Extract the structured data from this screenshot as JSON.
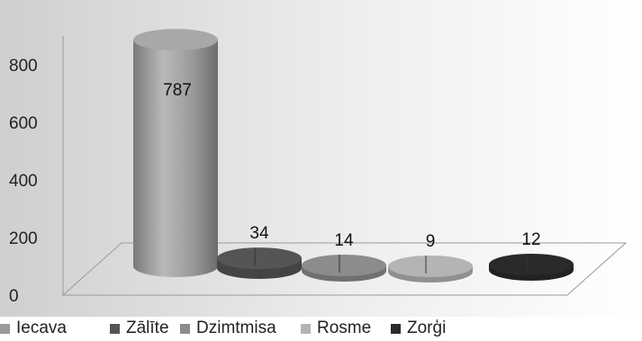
{
  "chart_data": {
    "type": "bar",
    "categories": [
      "Iecava",
      "Zālīte",
      "Dzimtmisa",
      "Rosme",
      "Zorģi"
    ],
    "values": [
      787,
      34,
      14,
      9,
      12
    ],
    "data_labels": [
      "787",
      "34",
      "14",
      "9",
      "12"
    ],
    "yticks": [
      "0",
      "200",
      "400",
      "600",
      "800"
    ],
    "ylim": [
      0,
      900
    ],
    "style": "3d-cylinder",
    "legend": "bottom",
    "grid": false,
    "colors": [
      "#9a9a9a",
      "#555555",
      "#8c8c8c",
      "#b4b4b4",
      "#2a2a2a"
    ]
  }
}
